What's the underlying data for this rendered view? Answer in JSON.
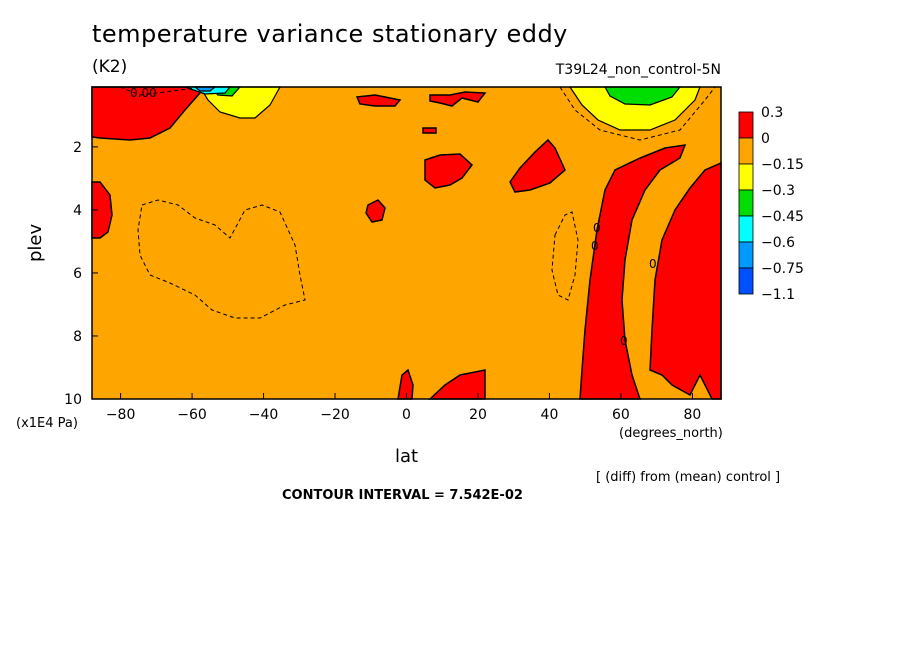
{
  "chart_data": {
    "type": "heatmap",
    "title": "temperature variance stationary eddy",
    "units": "(K2)",
    "run_label": "T39L24_non_control-5N",
    "xlabel": "lat",
    "x_units": "(degrees_north)",
    "ylabel": "plev",
    "y_units": "(x1E4 Pa)",
    "xlim": [
      -88,
      88
    ],
    "ylim": [
      10,
      0.1
    ],
    "x_ticks": [
      -80,
      -60,
      -40,
      -20,
      0,
      20,
      40,
      60,
      80
    ],
    "y_ticks": [
      2,
      4,
      6,
      8,
      10
    ],
    "x_tick_labels": [
      "−80",
      "−60",
      "−40",
      "−20",
      "0",
      "20",
      "40",
      "60",
      "80"
    ],
    "y_tick_labels": [
      "2",
      "4",
      "6",
      "8",
      "10"
    ],
    "colorbar": {
      "levels": [
        "0.3",
        "0",
        "−0.15",
        "−0.3",
        "−0.45",
        "−0.6",
        "−0.75",
        "−1.1"
      ],
      "colors": [
        "#ff0000",
        "#ffa500",
        "#ffff00",
        "#00dd00",
        "#00ffff",
        "#0099ff",
        "#0050ff"
      ]
    },
    "background_color": "#ffa500",
    "positive_region_color": "#ff0000",
    "contour_labels": [
      "0.00",
      "0",
      "0",
      "0",
      "0"
    ],
    "footer_note": "[ (diff) from (mean) control ]",
    "contour_interval": "CONTOUR INTERVAL = 7.542E-02"
  }
}
